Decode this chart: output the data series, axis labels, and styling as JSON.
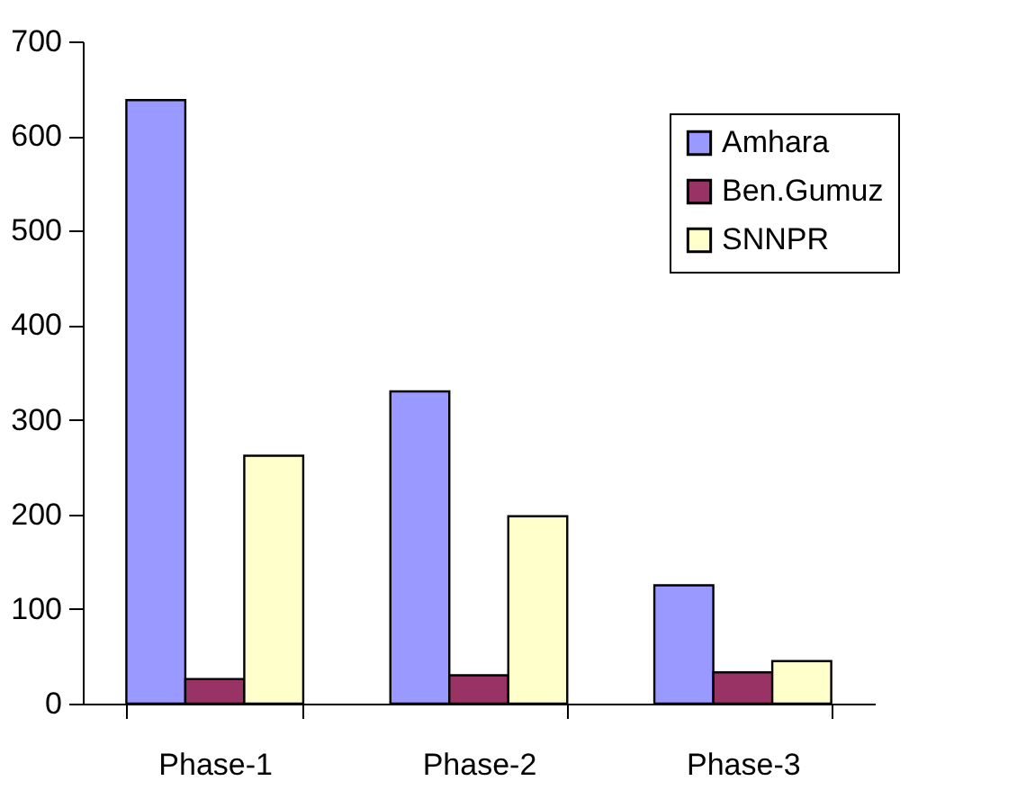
{
  "chart_data": {
    "type": "bar",
    "categories": [
      "Phase-1",
      "Phase-2",
      "Phase-3"
    ],
    "series": [
      {
        "name": "Amhara",
        "color": "#9999ff",
        "values": [
          638,
          330,
          125
        ]
      },
      {
        "name": "Ben.Gumuz",
        "color": "#993366",
        "values": [
          26,
          30,
          33
        ]
      },
      {
        "name": "SNNPR",
        "color": "#ffffcc",
        "values": [
          262,
          198,
          45
        ]
      }
    ],
    "ylim": [
      0,
      700
    ],
    "yticks": [
      0,
      100,
      200,
      300,
      400,
      500,
      600,
      700
    ],
    "grid": false,
    "legend": "top right"
  }
}
